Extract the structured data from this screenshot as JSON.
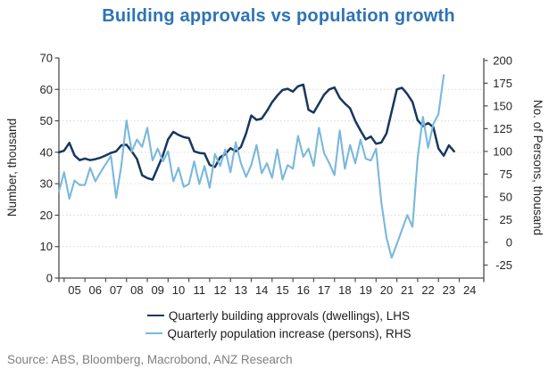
{
  "title": "Building approvals vs population growth",
  "source": "Source: ABS, Bloomberg, Macrobond, ANZ Research",
  "colors": {
    "title": "#2e74b5",
    "approvals_line": "#17375e",
    "population_line": "#7ab8dc",
    "axis": "#4d4d4d",
    "tick_text": "#262626",
    "grid": "#d9d9d9",
    "source_text": "#7f7f7f"
  },
  "chart_data": {
    "type": "line",
    "title": "Building approvals vs population growth",
    "x_unit": "quarterly (decimal years)",
    "x_start": 2004.75,
    "x_step": 0.25,
    "grid": "horizontal-dotted",
    "legend_position": "bottom",
    "left_axis": {
      "label": "Number, thousand",
      "min": 0,
      "max": 70,
      "tick_step": 10,
      "ticks": [
        0,
        10,
        20,
        30,
        40,
        50,
        60,
        70
      ]
    },
    "right_axis": {
      "label": "No. of Persons, thousand",
      "ticks": [
        -25,
        0,
        25,
        50,
        75,
        100,
        125,
        150,
        175,
        200
      ],
      "plot_min": -39.3,
      "plot_max": 202.8
    },
    "x_axis": {
      "tick_years": [
        2005,
        2006,
        2007,
        2008,
        2009,
        2010,
        2011,
        2012,
        2013,
        2014,
        2015,
        2016,
        2017,
        2018,
        2019,
        2020,
        2021,
        2022,
        2023,
        2024
      ],
      "year_labels": [
        "05",
        "06",
        "07",
        "08",
        "09",
        "10",
        "11",
        "12",
        "13",
        "14",
        "15",
        "16",
        "17",
        "18",
        "19",
        "20",
        "21",
        "22",
        "23",
        "24"
      ]
    },
    "series": [
      {
        "name": "Quarterly building approvals (dwellings), LHS",
        "axis": "left",
        "color": "#17375e",
        "values": [
          40.0,
          40.5,
          43.0,
          39.0,
          37.5,
          38.0,
          37.5,
          37.8,
          38.3,
          39.0,
          39.8,
          40.3,
          42.2,
          42.4,
          40.3,
          37.9,
          32.7,
          31.8,
          31.3,
          35.1,
          39.0,
          44.1,
          46.5,
          45.5,
          44.8,
          44.5,
          40.3,
          39.8,
          39.6,
          36.0,
          35.3,
          38.4,
          39.4,
          41.3,
          40.3,
          41.7,
          46.0,
          51.7,
          50.3,
          50.7,
          53.1,
          55.9,
          58.0,
          59.8,
          60.2,
          59.3,
          61.0,
          61.5,
          53.5,
          52.6,
          55.5,
          58.3,
          60.0,
          60.6,
          57.3,
          55.5,
          54.0,
          50.0,
          46.9,
          44.1,
          45.0,
          42.7,
          43.1,
          46.0,
          53.0,
          60.0,
          60.5,
          58.5,
          56.0,
          50.2,
          48.3,
          49.3,
          48.0,
          41.2,
          38.9,
          42.2,
          40.3
        ]
      },
      {
        "name": "Quarterly population increase (persons), RHS",
        "axis": "right",
        "color": "#7ab8dc",
        "values": [
          56,
          77,
          48,
          68,
          63,
          63,
          82,
          67,
          77,
          86,
          95,
          49,
          84,
          134,
          100,
          113,
          105,
          126,
          90,
          103,
          89,
          100,
          67,
          82,
          61,
          64,
          89,
          64,
          84,
          60,
          97,
          84,
          102,
          77,
          110,
          87,
          72,
          85,
          107,
          76,
          87,
          71,
          102,
          69,
          85,
          81,
          117,
          94,
          103,
          84,
          126,
          98,
          87,
          74,
          123,
          81,
          107,
          87,
          113,
          92,
          90,
          103,
          44,
          5,
          -17,
          -2,
          14,
          30,
          17,
          93,
          138,
          104,
          130,
          141,
          184
        ]
      }
    ]
  }
}
